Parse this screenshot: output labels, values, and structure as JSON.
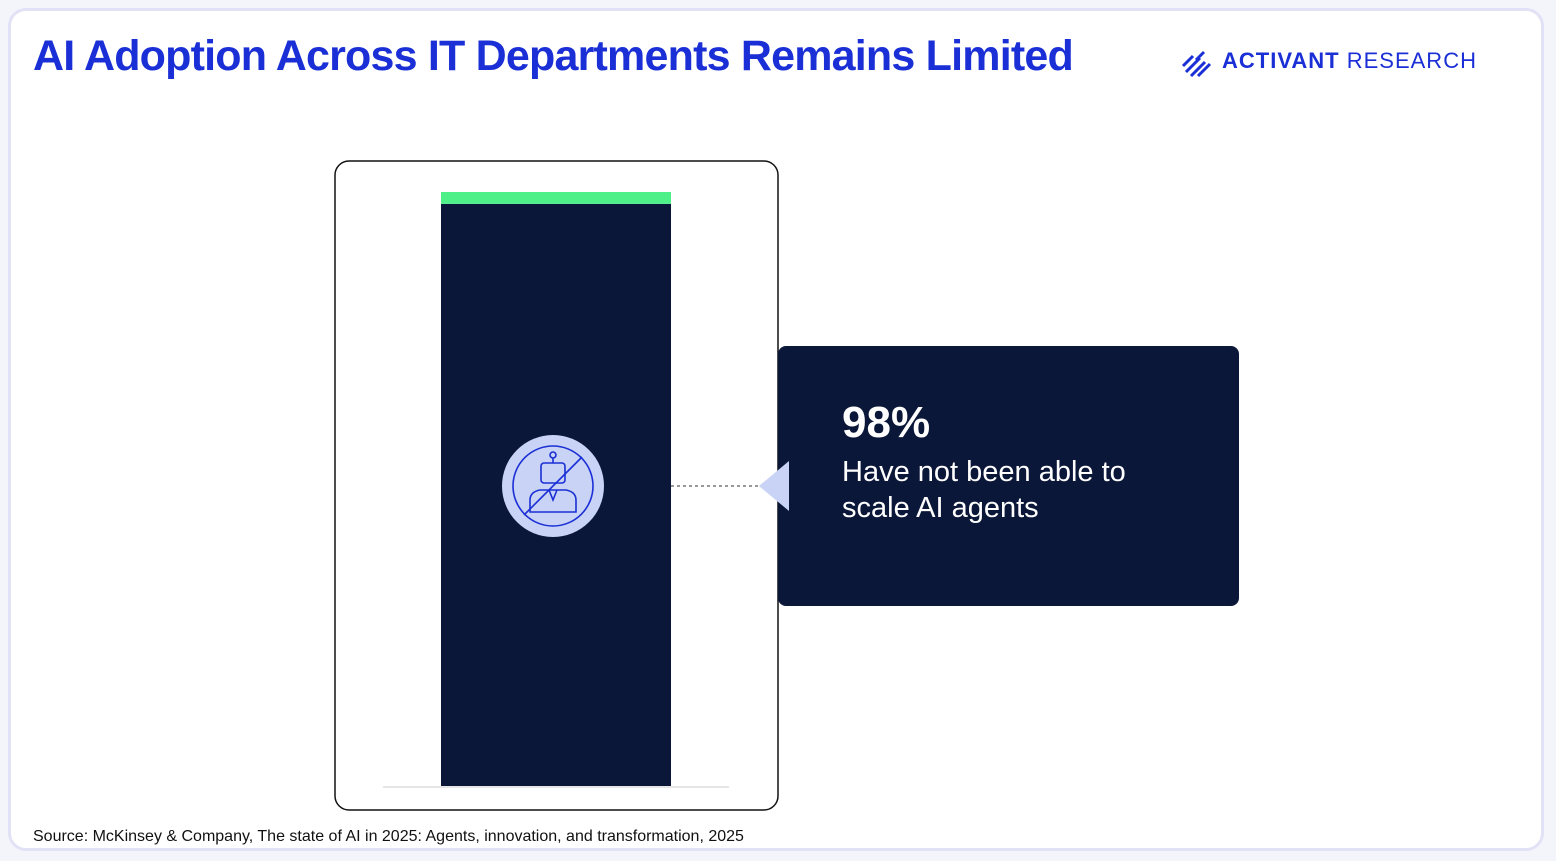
{
  "header": {
    "brand": "ACTIVANT",
    "brand_suffix": "RESEARCH"
  },
  "chart_data": {
    "type": "stacked_bar",
    "title": "AI Adoption Across IT Departments Remains Limited",
    "categories": [
      null
    ],
    "series": [
      {
        "color": "#0b1739",
        "values": [
          98
        ],
        "value_labels": [
          "98%"
        ]
      },
      {
        "color": "#4ef08a",
        "values": [
          2
        ]
      }
    ],
    "callout": "Have not been able to scale AI agents",
    "ylim": [
      0,
      100
    ],
    "source": "Source: McKinsey & Company, The state of AI in 2025: Agents, innovation, and transformation, 2025"
  }
}
